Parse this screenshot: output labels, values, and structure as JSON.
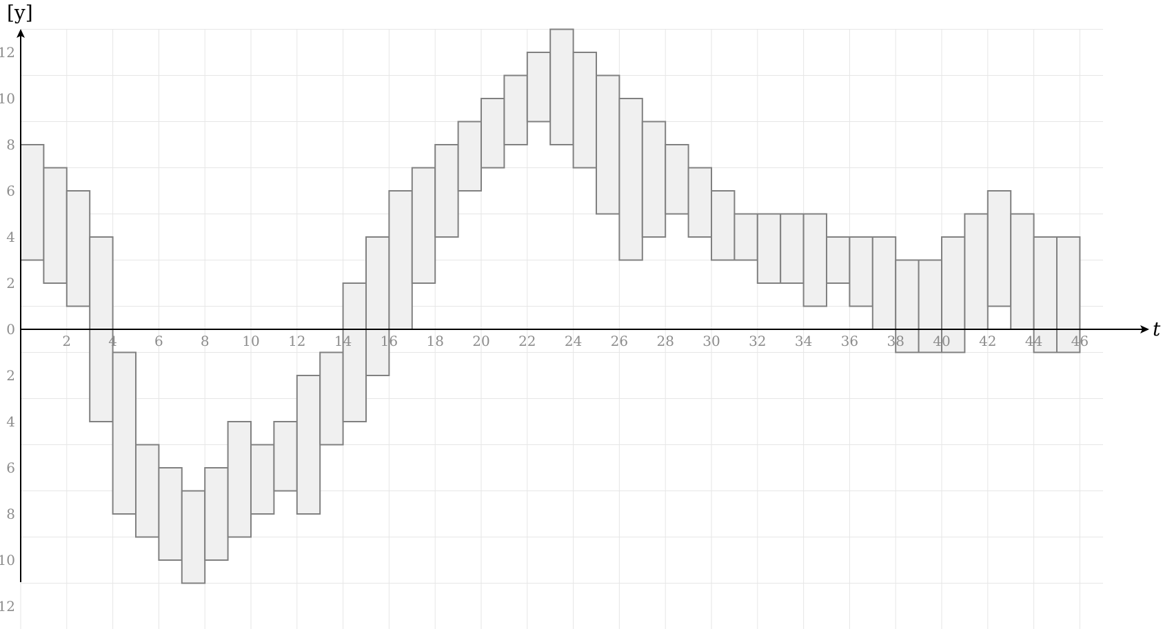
{
  "chart_data": {
    "type": "bar",
    "subtype": "floating-range",
    "xlabel": "t",
    "ylabel": "[y]",
    "xlim": [
      0,
      47
    ],
    "ylim": [
      -12,
      13
    ],
    "x_ticks": [
      2,
      4,
      6,
      8,
      10,
      12,
      14,
      16,
      18,
      20,
      22,
      24,
      26,
      28,
      30,
      32,
      34,
      36,
      38,
      40,
      42,
      44,
      46
    ],
    "y_ticks": [
      12,
      10,
      8,
      6,
      4,
      2,
      0,
      -2,
      -4,
      -6,
      -8,
      -10,
      -12
    ],
    "y_tick_labels": [
      "12",
      "10",
      "8",
      "6",
      "4",
      "2",
      "0",
      "2",
      "4",
      "6",
      "8",
      "10",
      "12"
    ],
    "grid": true,
    "colors": {
      "fill": "#f0f0f0",
      "stroke": "#808080",
      "grid": "#e6e6e6",
      "axis": "#000000",
      "tick_text": "#8c8c8c"
    },
    "bars": [
      {
        "x0": 0,
        "x1": 1,
        "low": 3,
        "high": 8
      },
      {
        "x0": 1,
        "x1": 2,
        "low": 2,
        "high": 7
      },
      {
        "x0": 2,
        "x1": 3,
        "low": 1,
        "high": 6
      },
      {
        "x0": 3,
        "x1": 4,
        "low": -4,
        "high": 4
      },
      {
        "x0": 4,
        "x1": 5,
        "low": -8,
        "high": -1
      },
      {
        "x0": 5,
        "x1": 6,
        "low": -9,
        "high": -5
      },
      {
        "x0": 6,
        "x1": 7,
        "low": -10,
        "high": -6
      },
      {
        "x0": 7,
        "x1": 8,
        "low": -11,
        "high": -7
      },
      {
        "x0": 8,
        "x1": 9,
        "low": -10,
        "high": -6
      },
      {
        "x0": 9,
        "x1": 10,
        "low": -9,
        "high": -4
      },
      {
        "x0": 10,
        "x1": 11,
        "low": -8,
        "high": -5
      },
      {
        "x0": 11,
        "x1": 12,
        "low": -7,
        "high": -4
      },
      {
        "x0": 12,
        "x1": 13,
        "low": -8,
        "high": -2
      },
      {
        "x0": 13,
        "x1": 14,
        "low": -5,
        "high": -1
      },
      {
        "x0": 14,
        "x1": 15,
        "low": -4,
        "high": 2
      },
      {
        "x0": 15,
        "x1": 16,
        "low": -2,
        "high": 4
      },
      {
        "x0": 16,
        "x1": 17,
        "low": 0,
        "high": 6
      },
      {
        "x0": 17,
        "x1": 18,
        "low": 2,
        "high": 7
      },
      {
        "x0": 18,
        "x1": 19,
        "low": 4,
        "high": 8
      },
      {
        "x0": 19,
        "x1": 20,
        "low": 6,
        "high": 9
      },
      {
        "x0": 20,
        "x1": 21,
        "low": 7,
        "high": 10
      },
      {
        "x0": 21,
        "x1": 22,
        "low": 8,
        "high": 11
      },
      {
        "x0": 22,
        "x1": 23,
        "low": 9,
        "high": 12
      },
      {
        "x0": 23,
        "x1": 24,
        "low": 8,
        "high": 13
      },
      {
        "x0": 24,
        "x1": 25,
        "low": 7,
        "high": 12
      },
      {
        "x0": 25,
        "x1": 26,
        "low": 5,
        "high": 11
      },
      {
        "x0": 26,
        "x1": 27,
        "low": 3,
        "high": 10
      },
      {
        "x0": 27,
        "x1": 28,
        "low": 4,
        "high": 9
      },
      {
        "x0": 28,
        "x1": 29,
        "low": 5,
        "high": 8
      },
      {
        "x0": 29,
        "x1": 30,
        "low": 4,
        "high": 7
      },
      {
        "x0": 30,
        "x1": 31,
        "low": 3,
        "high": 6
      },
      {
        "x0": 31,
        "x1": 32,
        "low": 3,
        "high": 5
      },
      {
        "x0": 32,
        "x1": 33,
        "low": 2,
        "high": 5
      },
      {
        "x0": 33,
        "x1": 34,
        "low": 2,
        "high": 5
      },
      {
        "x0": 34,
        "x1": 35,
        "low": 1,
        "high": 5
      },
      {
        "x0": 35,
        "x1": 36,
        "low": 2,
        "high": 4
      },
      {
        "x0": 36,
        "x1": 37,
        "low": 1,
        "high": 4
      },
      {
        "x0": 37,
        "x1": 38,
        "low": 0,
        "high": 4
      },
      {
        "x0": 38,
        "x1": 39,
        "low": -1,
        "high": 3
      },
      {
        "x0": 39,
        "x1": 40,
        "low": -1,
        "high": 3
      },
      {
        "x0": 40,
        "x1": 41,
        "low": -1,
        "high": 4
      },
      {
        "x0": 41,
        "x1": 42,
        "low": 0,
        "high": 5
      },
      {
        "x0": 42,
        "x1": 43,
        "low": 1,
        "high": 6
      },
      {
        "x0": 43,
        "x1": 44,
        "low": 0,
        "high": 5
      },
      {
        "x0": 44,
        "x1": 45,
        "low": -1,
        "high": 4
      },
      {
        "x0": 45,
        "x1": 46,
        "low": -1,
        "high": 4
      }
    ]
  }
}
